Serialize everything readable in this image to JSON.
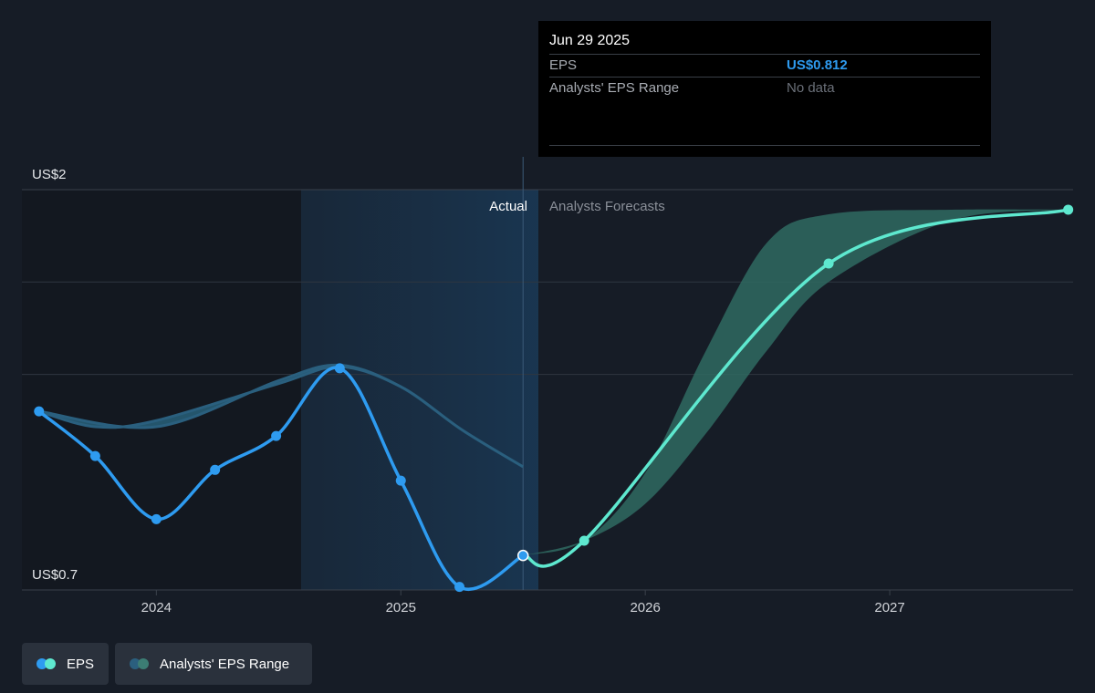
{
  "chart_data": {
    "type": "line",
    "y_axis": {
      "top_label": "US$2",
      "bottom_label": "US$0.7",
      "ylim": [
        0.7,
        2.0
      ]
    },
    "x_axis": {
      "ticks": [
        "2024",
        "2025",
        "2026",
        "2027"
      ],
      "xlim": [
        2023.45,
        2027.75
      ]
    },
    "sections": {
      "actual_label": "Actual",
      "forecast_label": "Analysts Forecasts",
      "divider_x": 2025.5
    },
    "series": [
      {
        "name": "EPS",
        "kind": "actual",
        "color": "#2e9bf0",
        "points": [
          {
            "x": 2023.52,
            "y": 1.28
          },
          {
            "x": 2023.75,
            "y": 1.135
          },
          {
            "x": 2024.0,
            "y": 0.93
          },
          {
            "x": 2024.24,
            "y": 1.09
          },
          {
            "x": 2024.49,
            "y": 1.2
          },
          {
            "x": 2024.75,
            "y": 1.42
          },
          {
            "x": 2025.0,
            "y": 1.055
          },
          {
            "x": 2025.24,
            "y": 0.71
          },
          {
            "x": 2025.5,
            "y": 0.812
          }
        ]
      },
      {
        "name": "EPS",
        "kind": "forecast",
        "color": "#5ee8cf",
        "points": [
          {
            "x": 2025.5,
            "y": 0.812
          },
          {
            "x": 2025.75,
            "y": 0.86
          },
          {
            "x": 2026.75,
            "y": 1.76
          },
          {
            "x": 2027.73,
            "y": 1.935
          }
        ]
      }
    ],
    "range_bands": [
      {
        "name": "Analysts' EPS Range",
        "kind": "historical",
        "upper": [
          [
            2023.52,
            1.28
          ],
          [
            2024.0,
            1.23
          ],
          [
            2024.5,
            1.38
          ],
          [
            2024.75,
            1.43
          ],
          [
            2025.0,
            1.36
          ],
          [
            2025.25,
            1.22
          ],
          [
            2025.5,
            1.1
          ]
        ],
        "lower": [
          [
            2023.52,
            1.28
          ],
          [
            2023.75,
            1.23
          ],
          [
            2024.0,
            1.25
          ],
          [
            2024.5,
            1.37
          ],
          [
            2024.75,
            1.425
          ],
          [
            2025.0,
            1.36
          ],
          [
            2025.25,
            1.22
          ],
          [
            2025.5,
            1.1
          ]
        ]
      },
      {
        "name": "Analysts' EPS Range",
        "kind": "forecast",
        "upper": [
          [
            2025.5,
            0.812
          ],
          [
            2025.75,
            0.86
          ],
          [
            2026.0,
            1.08
          ],
          [
            2026.25,
            1.48
          ],
          [
            2026.5,
            1.83
          ],
          [
            2026.75,
            1.92
          ],
          [
            2027.25,
            1.935
          ],
          [
            2027.73,
            1.935
          ]
        ],
        "lower": [
          [
            2027.73,
            1.935
          ],
          [
            2027.25,
            1.9
          ],
          [
            2026.75,
            1.7
          ],
          [
            2026.5,
            1.48
          ],
          [
            2026.25,
            1.21
          ],
          [
            2026.0,
            0.98
          ],
          [
            2025.75,
            0.86
          ],
          [
            2025.5,
            0.812
          ]
        ]
      }
    ],
    "colors": {
      "background": "#161c26",
      "band": "#2b6a86",
      "forecast_band": "#2f6a62",
      "grid": "#39404a"
    }
  },
  "tooltip": {
    "date": "Jun 29 2025",
    "eps_label": "EPS",
    "eps_value": "US$0.812",
    "range_label": "Analysts' EPS Range",
    "range_value": "No data"
  },
  "legend": {
    "eps_label": "EPS",
    "range_label": "Analysts' EPS Range"
  }
}
